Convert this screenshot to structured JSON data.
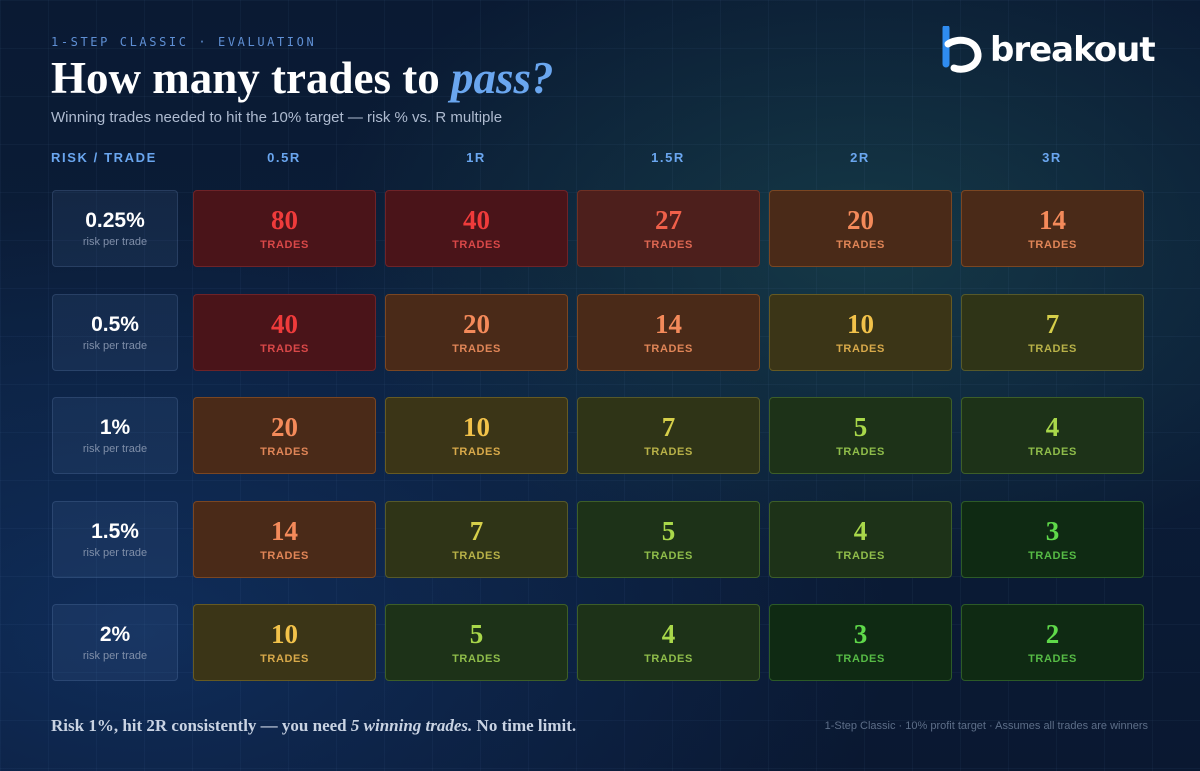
{
  "header": {
    "eyebrow": "1-STEP CLASSIC · EVALUATION",
    "title_main": "How many trades to ",
    "title_accent": "pass?",
    "subtitle": "Winning trades needed to hit the 10% target — risk % vs. R multiple"
  },
  "brand": {
    "name": "breakout",
    "icon": "breakout-b-logo"
  },
  "table": {
    "row_header_label": "RISK / TRADE",
    "columns": [
      "0.5R",
      "1R",
      "1.5R",
      "2R",
      "3R"
    ],
    "row_sub_label": "risk per trade",
    "unit_label": "TRADES",
    "rows": [
      {
        "risk": "0.25%",
        "values": [
          "80",
          "40",
          "27",
          "20",
          "14"
        ]
      },
      {
        "risk": "0.5%",
        "values": [
          "40",
          "20",
          "14",
          "10",
          "7"
        ]
      },
      {
        "risk": "1%",
        "values": [
          "20",
          "10",
          "7",
          "5",
          "4"
        ]
      },
      {
        "risk": "1.5%",
        "values": [
          "14",
          "7",
          "5",
          "4",
          "3"
        ]
      },
      {
        "risk": "2%",
        "values": [
          "10",
          "5",
          "4",
          "3",
          "2"
        ]
      }
    ]
  },
  "footer": {
    "lead": "Risk 1%, hit 2R consistently — you need ",
    "emphasis": "5 winning trades.",
    "tail": " No time limit.",
    "note": "1-Step Classic · 10% profit target · Assumes all trades are winners"
  },
  "colors": {
    "tier_80_40": {
      "num": "#ef3b3b",
      "unit": "#d94848",
      "bg": "#4a1419",
      "border": "#6e2328"
    },
    "tier_27": {
      "num": "#f0604a",
      "unit": "#de6752",
      "bg": "#4d1f1c",
      "border": "#6d3024"
    },
    "tier_20_14": {
      "num": "#f48a5a",
      "unit": "#e08557",
      "bg": "#4a2a18",
      "border": "#7a4622"
    },
    "tier_10": {
      "num": "#f2c24a",
      "unit": "#d8a94a",
      "bg": "#3b3517",
      "border": "#665a22"
    },
    "tier_7": {
      "num": "#d6cf4a",
      "unit": "#b8b148",
      "bg": "#2f3417",
      "border": "#56592a"
    },
    "tier_5_4": {
      "num": "#a9d84a",
      "unit": "#8fbd4a",
      "bg": "#1d3218",
      "border": "#3d5e28"
    },
    "tier_3_2": {
      "num": "#5fd94a",
      "unit": "#56bb45",
      "bg": "#0f2a13",
      "border": "#2c5a27"
    }
  }
}
